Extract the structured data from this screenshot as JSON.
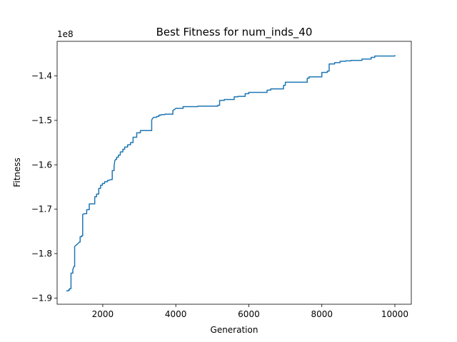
{
  "chart_data": {
    "type": "line",
    "title": "Best Fitness for num_inds_40",
    "xlabel": "Generation",
    "ylabel": "Fitness",
    "y_offset_label": "1e8",
    "xlim": [
      750,
      10450
    ],
    "ylim": [
      -1.914,
      -1.322
    ],
    "x_ticks": [
      2000,
      4000,
      6000,
      8000,
      10000
    ],
    "x_tick_labels": [
      "2000",
      "4000",
      "6000",
      "8000",
      "10000"
    ],
    "y_ticks": [
      -1.9,
      -1.8,
      -1.7,
      -1.6,
      -1.5,
      -1.4
    ],
    "y_tick_labels": [
      "−1.9",
      "−1.8",
      "−1.7",
      "−1.6",
      "−1.5",
      "−1.4"
    ],
    "grid": false,
    "legend": "none",
    "series": [
      {
        "color": "#1f77b4",
        "x": [
          1000,
          1060,
          1060,
          1090,
          1090,
          1130,
          1130,
          1180,
          1180,
          1210,
          1230,
          1230,
          1300,
          1360,
          1380,
          1380,
          1420,
          1420,
          1450,
          1450,
          1500,
          1560,
          1560,
          1590,
          1630,
          1630,
          1700,
          1780,
          1780,
          1830,
          1830,
          1890,
          1890,
          1940,
          1940,
          1990,
          1990,
          2050,
          2050,
          2130,
          2130,
          2160,
          2200,
          2200,
          2260,
          2260,
          2310,
          2310,
          2330,
          2350,
          2380,
          2380,
          2430,
          2430,
          2480,
          2480,
          2550,
          2550,
          2600,
          2600,
          2680,
          2680,
          2760,
          2760,
          2830,
          2830,
          2930,
          2930,
          3030,
          3030,
          3340,
          3340,
          3370,
          3400,
          3480,
          3480,
          3540,
          3540,
          3600,
          3600,
          3700,
          3700,
          3920,
          3920,
          3970,
          4000,
          4200,
          4200,
          4600,
          4600,
          5150,
          5150,
          5200,
          5200,
          5330,
          5330,
          5600,
          5600,
          5700,
          5700,
          5900,
          5900,
          6000,
          6000,
          6500,
          6500,
          6600,
          6600,
          6950,
          6950,
          7000,
          7000,
          7600,
          7600,
          7650,
          7650,
          8000,
          8000,
          8150,
          8150,
          8200,
          8200,
          8350,
          8350,
          8500,
          8500,
          8650,
          8650,
          8800,
          8800,
          9100,
          9100,
          9350,
          9350,
          9450,
          9450,
          10000,
          10000
        ],
        "y": [
          -1.884,
          -1.884,
          -1.882,
          -1.882,
          -1.879,
          -1.879,
          -1.844,
          -1.844,
          -1.836,
          -1.829,
          -1.829,
          -1.784,
          -1.779,
          -1.774,
          -1.774,
          -1.762,
          -1.762,
          -1.76,
          -1.76,
          -1.712,
          -1.71,
          -1.71,
          -1.701,
          -1.701,
          -1.701,
          -1.688,
          -1.688,
          -1.688,
          -1.672,
          -1.672,
          -1.666,
          -1.666,
          -1.653,
          -1.653,
          -1.646,
          -1.646,
          -1.642,
          -1.642,
          -1.638,
          -1.638,
          -1.635,
          -1.635,
          -1.634,
          -1.634,
          -1.633,
          -1.613,
          -1.613,
          -1.603,
          -1.591,
          -1.588,
          -1.588,
          -1.583,
          -1.583,
          -1.578,
          -1.578,
          -1.571,
          -1.571,
          -1.565,
          -1.565,
          -1.56,
          -1.56,
          -1.555,
          -1.555,
          -1.55,
          -1.55,
          -1.538,
          -1.538,
          -1.528,
          -1.528,
          -1.523,
          -1.523,
          -1.499,
          -1.495,
          -1.493,
          -1.493,
          -1.491,
          -1.491,
          -1.488,
          -1.488,
          -1.487,
          -1.487,
          -1.486,
          -1.486,
          -1.478,
          -1.475,
          -1.473,
          -1.473,
          -1.469,
          -1.469,
          -1.468,
          -1.468,
          -1.466,
          -1.466,
          -1.455,
          -1.455,
          -1.453,
          -1.453,
          -1.447,
          -1.447,
          -1.446,
          -1.446,
          -1.44,
          -1.44,
          -1.437,
          -1.437,
          -1.432,
          -1.432,
          -1.429,
          -1.429,
          -1.421,
          -1.421,
          -1.414,
          -1.414,
          -1.405,
          -1.405,
          -1.402,
          -1.402,
          -1.392,
          -1.392,
          -1.389,
          -1.389,
          -1.373,
          -1.373,
          -1.37,
          -1.37,
          -1.367,
          -1.367,
          -1.366,
          -1.366,
          -1.365,
          -1.365,
          -1.362,
          -1.362,
          -1.358,
          -1.358,
          -1.355,
          -1.355,
          -1.353
        ]
      }
    ]
  }
}
